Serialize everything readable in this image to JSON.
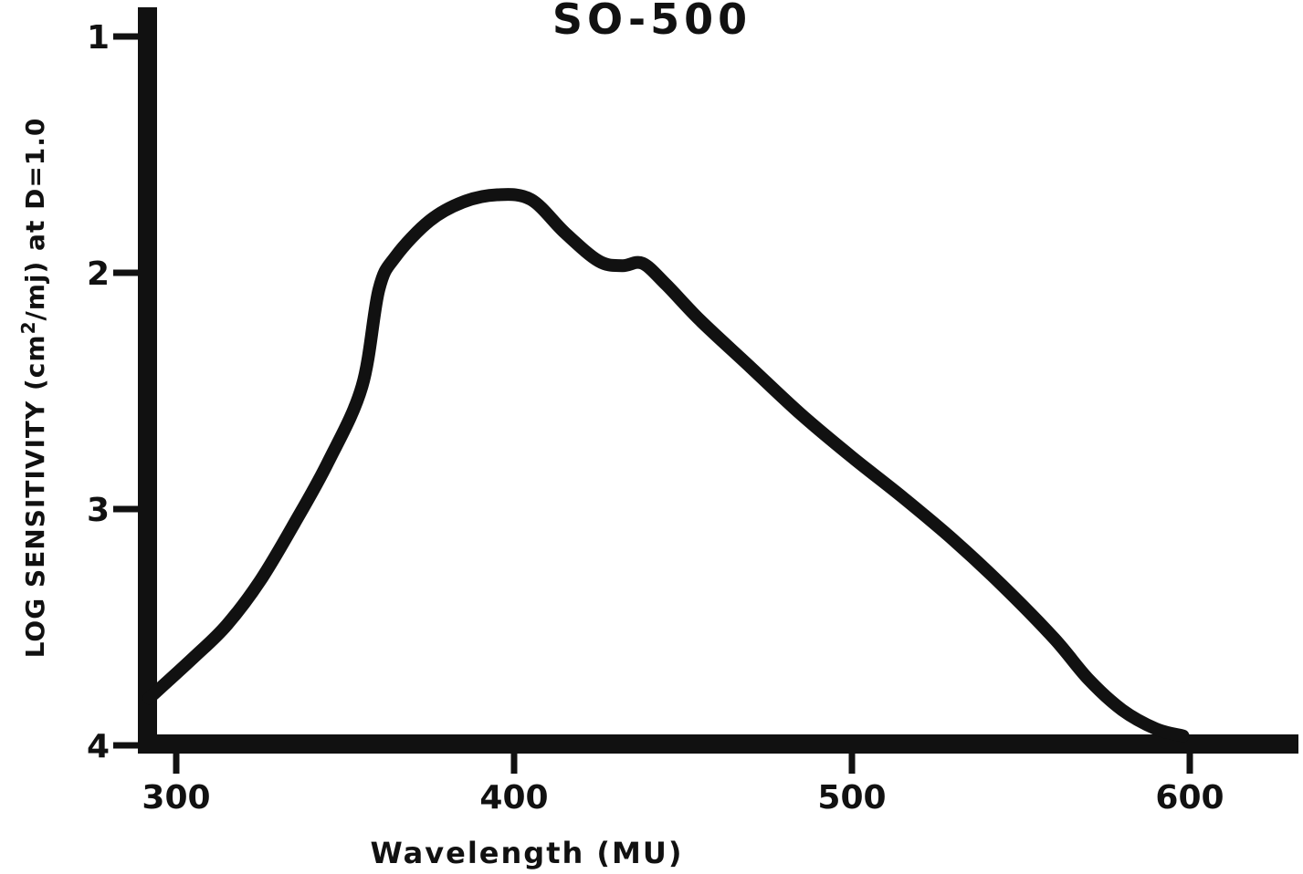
{
  "chart_data": {
    "type": "line",
    "title": "SO-500",
    "xlabel": "Wavelength (MU)",
    "ylabel": {
      "prefix": "LOG SENSITIVITY (cm",
      "superscript": "2",
      "suffix": "/mj) at D=1.0"
    },
    "xlim": [
      290,
      628
    ],
    "ylim": [
      1,
      4
    ],
    "y_inverted": true,
    "x_ticks": [
      {
        "value": 300,
        "label": "300"
      },
      {
        "value": 400,
        "label": "400"
      },
      {
        "value": 500,
        "label": "500"
      },
      {
        "value": 600,
        "label": "600"
      }
    ],
    "y_ticks": [
      {
        "value": 1,
        "label": "1"
      },
      {
        "value": 2,
        "label": "2"
      },
      {
        "value": 3,
        "label": "3"
      },
      {
        "value": 4,
        "label": "4"
      }
    ],
    "series": [
      {
        "x": [
          292,
          305,
          315,
          325,
          335,
          345,
          355,
          360,
          365,
          375,
          385,
          395,
          405,
          415,
          425,
          432,
          438,
          445,
          455,
          470,
          485,
          500,
          515,
          530,
          545,
          560,
          570,
          580,
          590,
          598
        ],
        "y": [
          3.8,
          3.63,
          3.49,
          3.3,
          3.06,
          2.8,
          2.48,
          2.07,
          1.93,
          1.78,
          1.7,
          1.67,
          1.69,
          1.83,
          1.95,
          1.97,
          1.96,
          2.05,
          2.2,
          2.4,
          2.6,
          2.78,
          2.95,
          3.13,
          3.33,
          3.55,
          3.72,
          3.85,
          3.93,
          3.96
        ]
      }
    ],
    "colors": {
      "line": "#111111",
      "axis": "#111111",
      "background": "#ffffff"
    },
    "grid": false,
    "legend": "none"
  }
}
